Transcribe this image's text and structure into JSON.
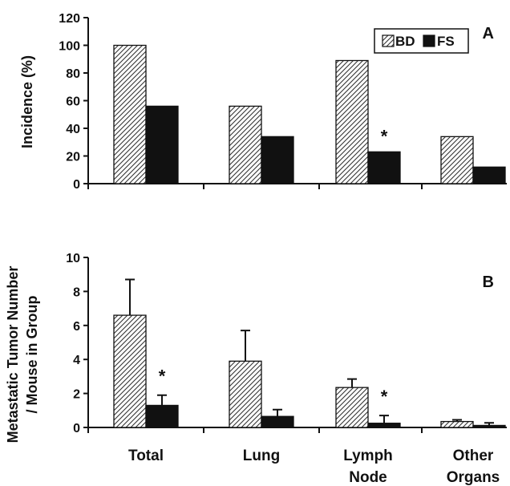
{
  "chart_data": [
    {
      "type": "bar",
      "panel_label": "A",
      "ylabel": "Incidence (%)",
      "ylim": [
        0,
        120
      ],
      "yticks": [
        "0",
        "20",
        "40",
        "60",
        "80",
        "100",
        "120"
      ],
      "categories": [
        "Total",
        "Lung",
        "Lymph Node",
        "Other Organs"
      ],
      "legend": {
        "placement": "top-right"
      },
      "series": [
        {
          "name": "BD",
          "pattern": "hatched",
          "color": "#ffffff",
          "values": [
            100,
            56,
            89,
            34
          ]
        },
        {
          "name": "FS",
          "pattern": "solid",
          "color": "#111111",
          "values": [
            56,
            34,
            23,
            12
          ]
        }
      ],
      "annotations": [
        {
          "text": "*",
          "category": "Lymph Node",
          "series": "FS"
        }
      ]
    },
    {
      "type": "bar",
      "panel_label": "B",
      "ylabel_lines": [
        "Metastatic Tumor Number",
        "/ Mouse in Group"
      ],
      "ylim": [
        0,
        10
      ],
      "yticks": [
        "0",
        "2",
        "4",
        "6",
        "8",
        "10"
      ],
      "categories": [
        "Total",
        "Lung",
        "Lymph Node",
        "Other Organs"
      ],
      "category_lines": [
        [
          "Total"
        ],
        [
          "Lung"
        ],
        [
          "Lymph",
          "Node"
        ],
        [
          "Other",
          "Organs"
        ]
      ],
      "series": [
        {
          "name": "BD",
          "pattern": "hatched",
          "color": "#ffffff",
          "values": [
            6.6,
            3.9,
            2.35,
            0.35
          ],
          "errors": [
            2.1,
            1.8,
            0.5,
            0.1
          ]
        },
        {
          "name": "FS",
          "pattern": "solid",
          "color": "#111111",
          "values": [
            1.3,
            0.65,
            0.25,
            0.12
          ],
          "errors": [
            0.6,
            0.4,
            0.45,
            0.15
          ]
        }
      ],
      "annotations": [
        {
          "text": "*",
          "category": "Total",
          "series": "FS"
        },
        {
          "text": "*",
          "category": "Lymph Node",
          "series": "FS"
        }
      ]
    }
  ]
}
